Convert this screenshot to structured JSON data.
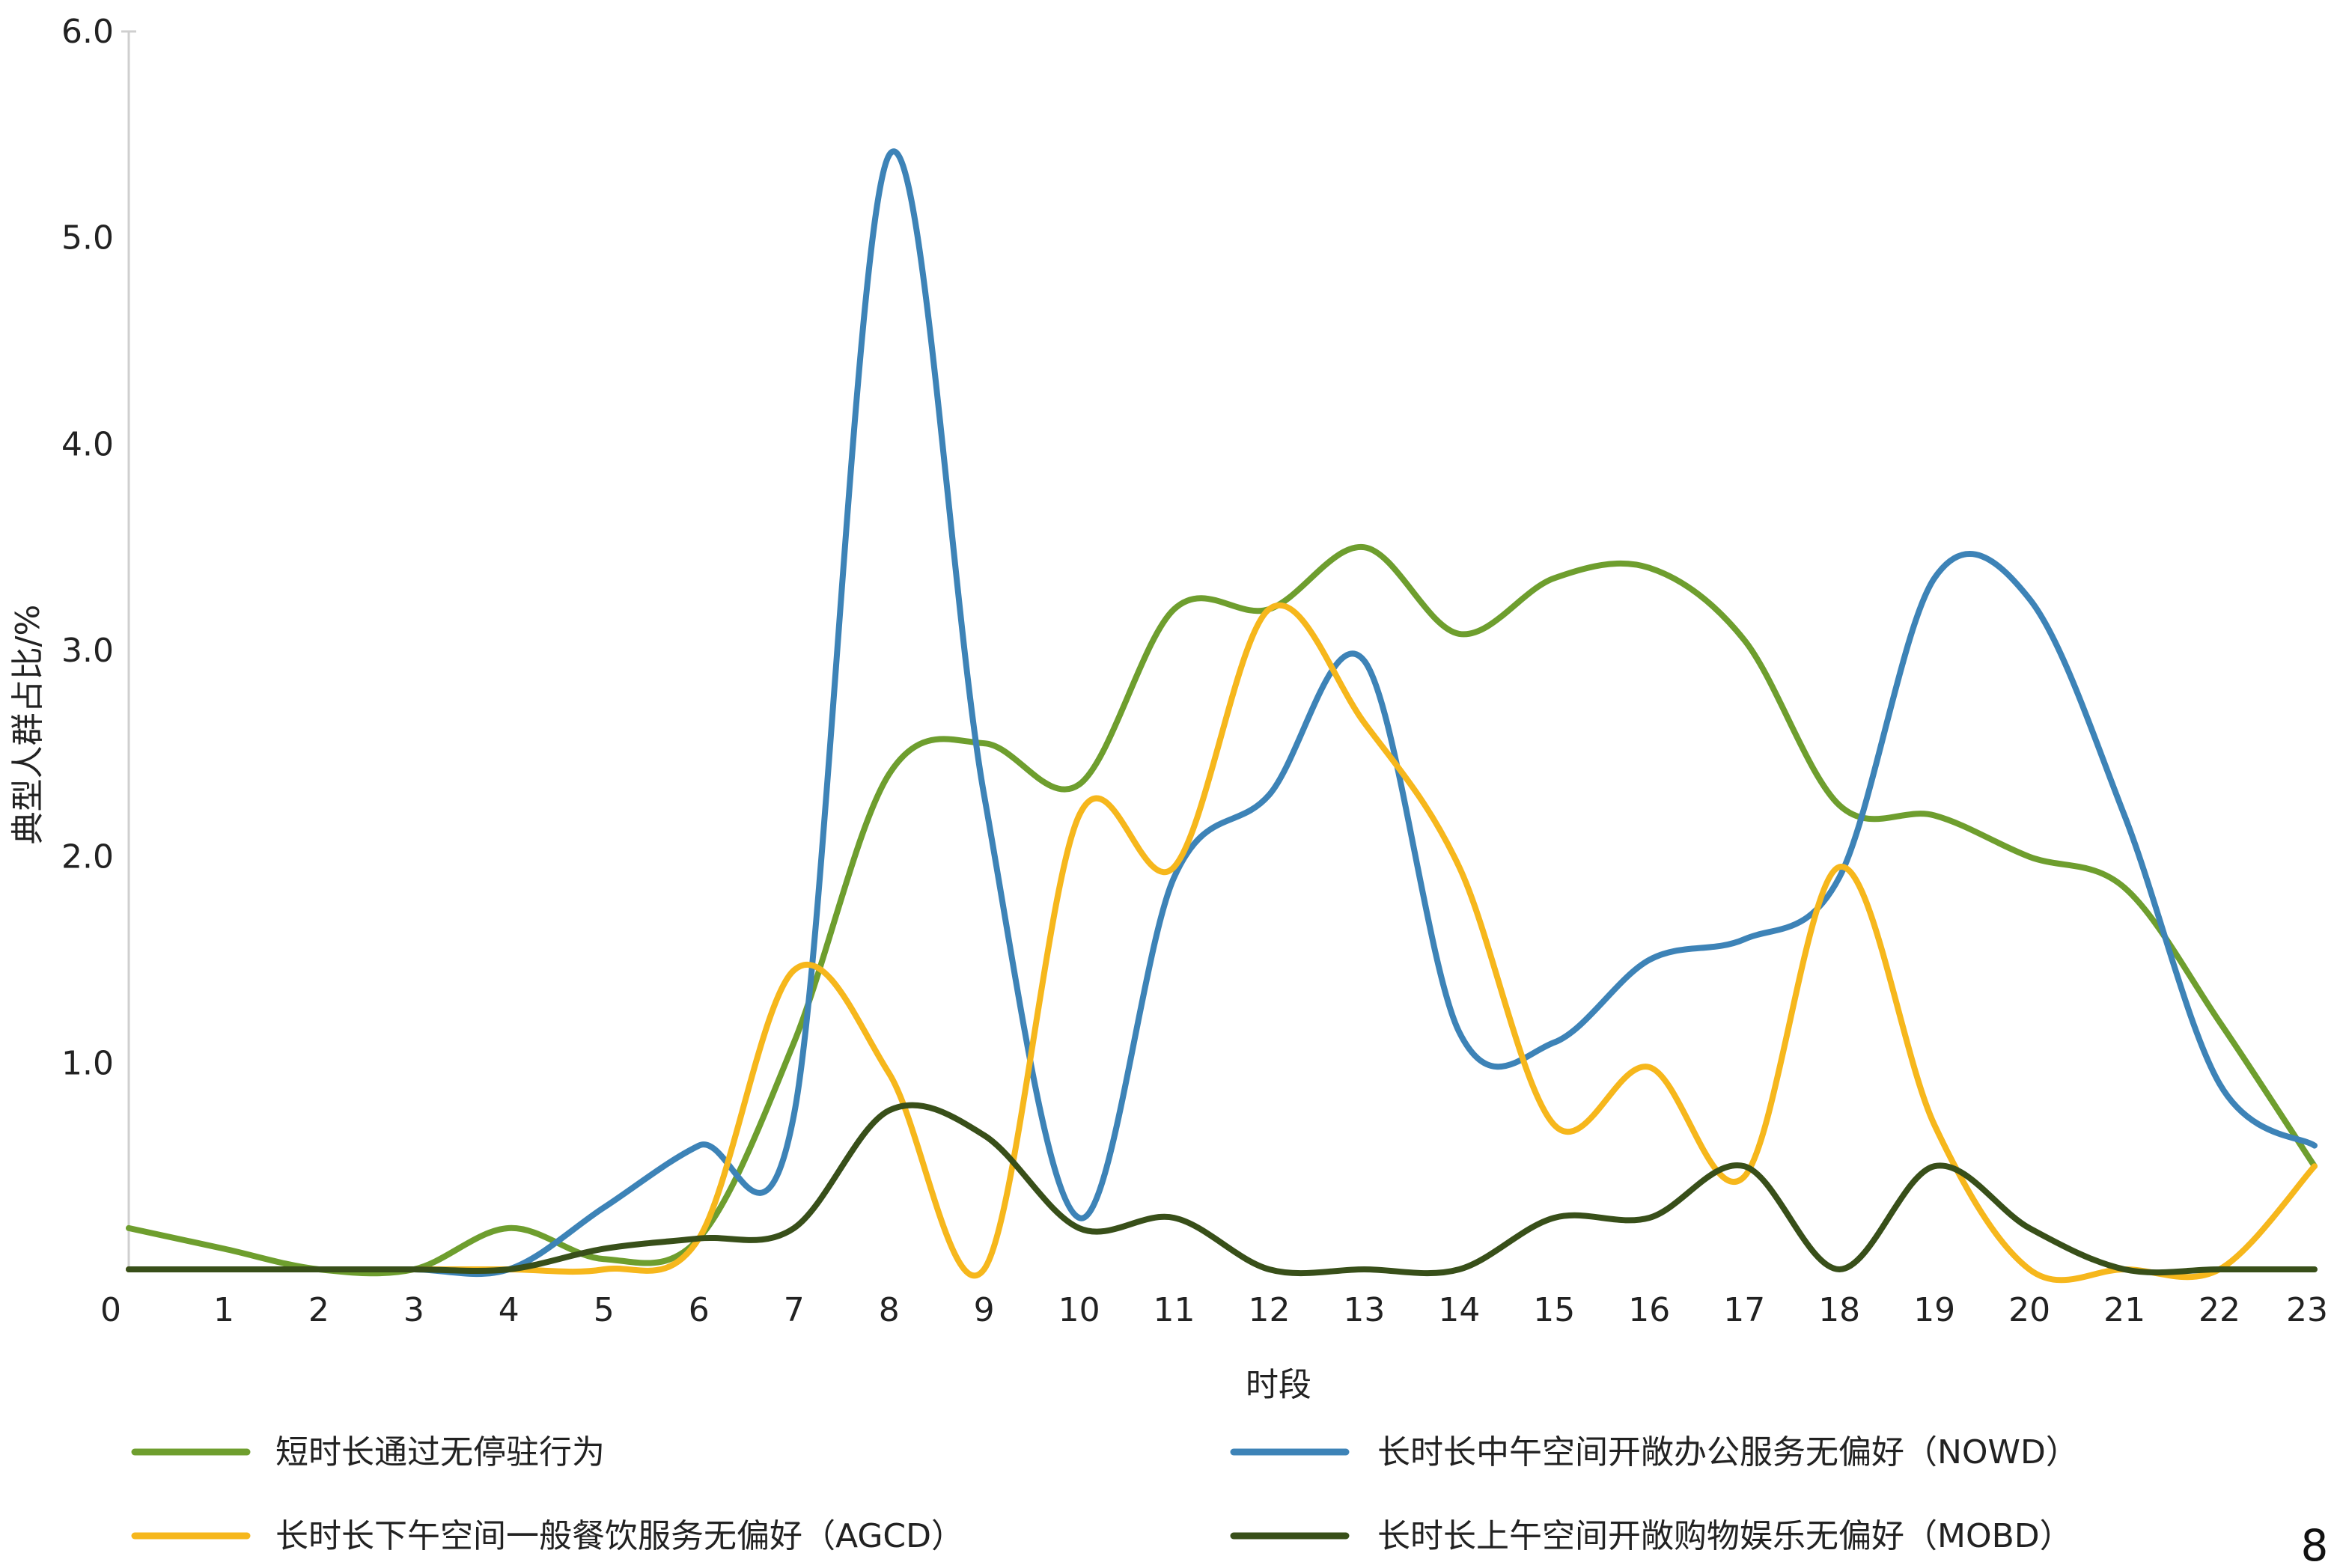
{
  "chart_data": {
    "type": "line",
    "title": "",
    "xlabel": "时段",
    "ylabel": "典型人群占比/%",
    "ylim": [
      0,
      6.0
    ],
    "y_ticks": [
      "1.0",
      "2.0",
      "3.0",
      "4.0",
      "5.0",
      "6.0"
    ],
    "x": [
      0,
      1,
      2,
      3,
      4,
      5,
      6,
      7,
      8,
      9,
      10,
      11,
      12,
      13,
      14,
      15,
      16,
      17,
      18,
      19,
      20,
      21,
      22,
      23
    ],
    "x_ticks": [
      "0",
      "1",
      "2",
      "3",
      "4",
      "5",
      "6",
      "7",
      "8",
      "9",
      "10",
      "11",
      "12",
      "13",
      "14",
      "15",
      "16",
      "17",
      "18",
      "19",
      "20",
      "21",
      "22",
      "23"
    ],
    "grid": false,
    "legend_position": "bottom",
    "series": [
      {
        "name": "短时长通过无停驻行为",
        "color": "#6e9e2e",
        "values": [
          0.2,
          0.1,
          0.0,
          0.0,
          0.2,
          0.05,
          0.15,
          1.1,
          2.4,
          2.55,
          2.35,
          3.2,
          3.2,
          3.5,
          3.08,
          3.35,
          3.4,
          3.05,
          2.25,
          2.2,
          2.0,
          1.85,
          1.2,
          0.5
        ]
      },
      {
        "name": "长时长中午空间开敞办公服务无偏好（NOWD）",
        "color": "#3d83b7",
        "values": [
          0.0,
          0.0,
          0.0,
          0.0,
          0.0,
          0.3,
          0.6,
          0.75,
          5.4,
          2.3,
          0.25,
          1.9,
          2.3,
          2.95,
          1.15,
          1.1,
          1.5,
          1.6,
          1.9,
          3.35,
          3.25,
          2.2,
          0.9,
          0.6
        ]
      },
      {
        "name": "长时长下午空间一般餐饮服务无偏好（AGCD）",
        "color": "#f6b71c",
        "values": [
          0.0,
          0.0,
          0.0,
          0.0,
          0.0,
          0.0,
          0.15,
          1.45,
          0.95,
          0.0,
          2.2,
          1.95,
          3.2,
          2.65,
          1.95,
          0.7,
          0.98,
          0.45,
          1.95,
          0.7,
          0.0,
          0.0,
          0.0,
          0.5
        ]
      },
      {
        "name": "长时长上午空间开敞购物娱乐无偏好（MOBD）",
        "color": "#384f19",
        "values": [
          0.0,
          0.0,
          0.0,
          0.0,
          0.0,
          0.1,
          0.15,
          0.2,
          0.77,
          0.65,
          0.2,
          0.25,
          0.0,
          0.0,
          0.0,
          0.25,
          0.25,
          0.5,
          0.0,
          0.5,
          0.2,
          0.0,
          0.0,
          0.0
        ]
      }
    ]
  },
  "page_number": "8"
}
